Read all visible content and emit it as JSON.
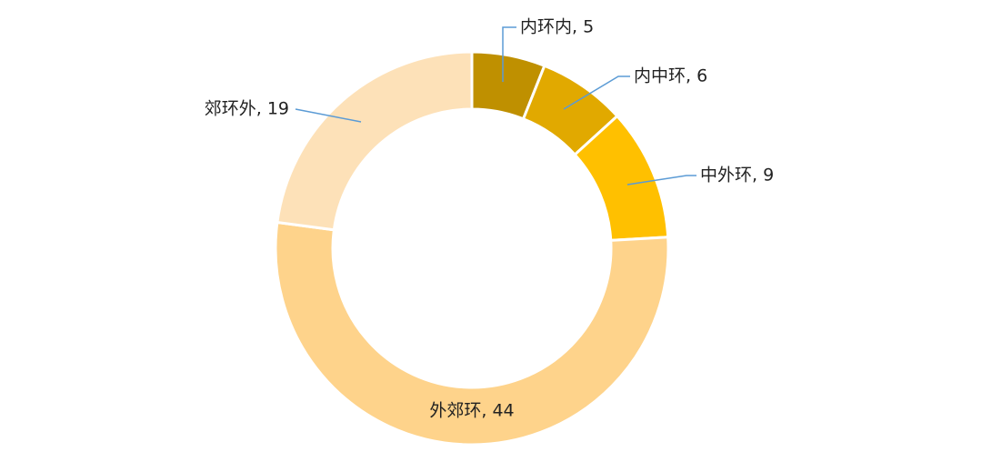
{
  "chart_data": {
    "type": "donut",
    "categories": [
      "内环内",
      "内中环",
      "中外环",
      "外郊环",
      "郊环外"
    ],
    "values": [
      5,
      6,
      9,
      44,
      19
    ],
    "value_labels": [
      "内环内, 5",
      "内中环, 6",
      "中外环, 9",
      "外郊环, 44",
      "郊环外, 19"
    ],
    "colors": [
      "#bf9000",
      "#e1a900",
      "#ffc000",
      "#fed38b",
      "#fde1b8"
    ]
  }
}
